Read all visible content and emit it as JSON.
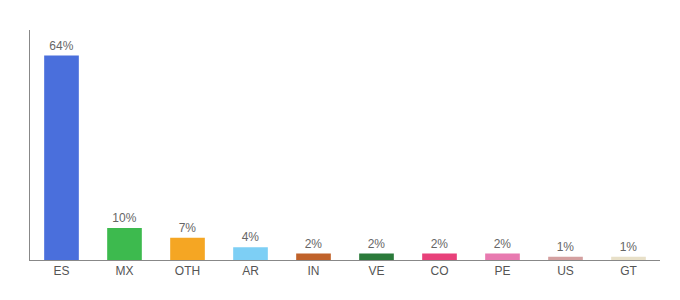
{
  "chart_data": {
    "type": "bar",
    "categories": [
      "ES",
      "MX",
      "OTH",
      "AR",
      "IN",
      "VE",
      "CO",
      "PE",
      "US",
      "GT"
    ],
    "values": [
      64,
      10,
      7,
      4,
      2,
      2,
      2,
      2,
      1,
      1
    ],
    "value_labels": [
      "64%",
      "10%",
      "7%",
      "4%",
      "2%",
      "2%",
      "2%",
      "2%",
      "1%",
      "1%"
    ],
    "colors": [
      "#4a6fdc",
      "#3dba4e",
      "#f5a623",
      "#7dcff5",
      "#c0622a",
      "#2a7a3a",
      "#e8417a",
      "#e87ab0",
      "#d4a0a0",
      "#e8e0c8"
    ],
    "ylim": [
      0,
      72
    ],
    "data_labels": true,
    "tick_labels": "x",
    "grid": false
  }
}
